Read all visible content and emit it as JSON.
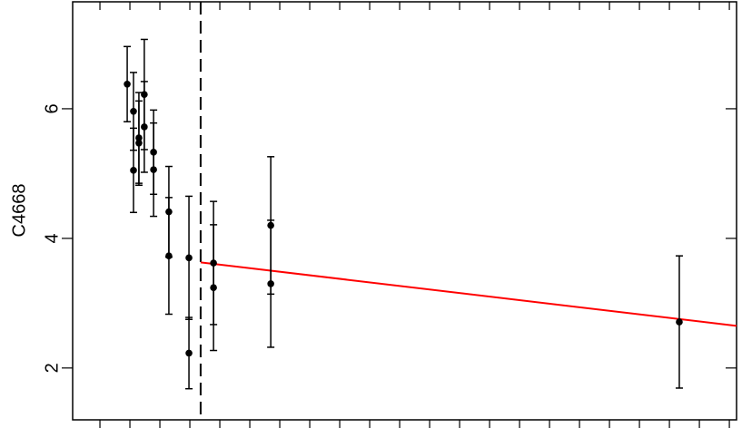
{
  "chart_data": {
    "type": "scatter",
    "y_label": "C4668",
    "xlim": [
      0.09,
      22.24
    ],
    "ylim": [
      1.2,
      7.65
    ],
    "xticks": [
      1,
      2,
      3,
      4,
      5,
      6,
      7,
      8,
      9,
      10,
      11,
      12,
      13,
      14,
      15,
      16,
      17,
      18,
      19,
      20,
      21,
      22
    ],
    "yticks": [
      2,
      4,
      6
    ],
    "series": [
      {
        "color": "#000000",
        "x": [
          1.91,
          2.12,
          2.12,
          2.3,
          2.3,
          2.48,
          2.48,
          2.79,
          2.79,
          3.3,
          3.3,
          3.97,
          3.97,
          4.79,
          4.79,
          6.7,
          6.7,
          20.33
        ],
        "values": [
          6.38,
          5.96,
          5.05,
          5.55,
          5.47,
          6.22,
          5.72,
          5.33,
          5.06,
          4.41,
          3.73,
          3.7,
          2.23,
          3.62,
          3.24,
          4.2,
          3.3,
          2.71
        ],
        "errors": [
          0.58,
          0.6,
          0.65,
          0.7,
          0.65,
          0.85,
          0.7,
          0.65,
          0.72,
          0.7,
          0.9,
          0.95,
          0.55,
          0.95,
          0.97,
          1.06,
          0.98,
          1.02
        ]
      }
    ],
    "fit": {
      "color": "#ff0000",
      "x": [
        4.36,
        22.24
      ],
      "values": [
        3.63,
        2.65
      ]
    },
    "vline": 4.36
  }
}
